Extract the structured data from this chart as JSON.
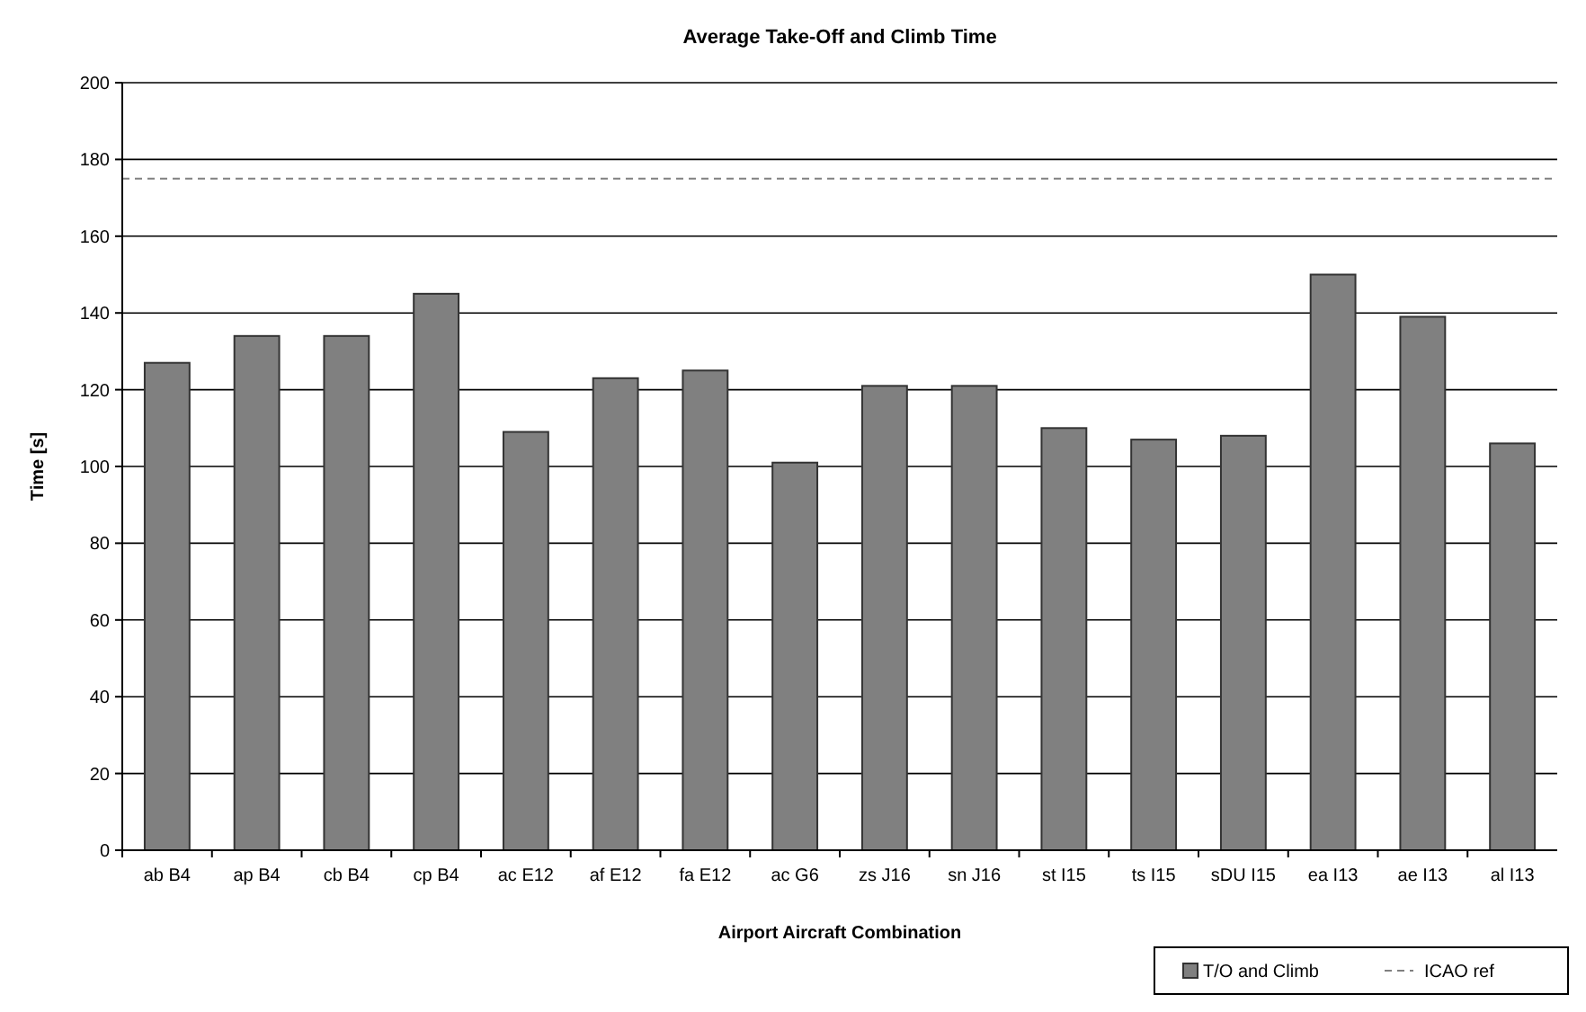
{
  "chart_data": {
    "type": "bar",
    "title": "Average Take-Off and Climb Time",
    "xlabel": "Airport Aircraft Combination",
    "ylabel": "Time [s]",
    "categories": [
      "ab B4",
      "ap B4",
      "cb B4",
      "cp B4",
      "ac E12",
      "af E12",
      "fa E12",
      "ac G6",
      "zs J16",
      "sn J16",
      "st I15",
      "ts I15",
      "sDU I15",
      "ea I13",
      "ae I13",
      "al I13"
    ],
    "series": [
      {
        "name": "T/O and Climb",
        "color": "#808080",
        "values": [
          127,
          134,
          134,
          145,
          109,
          123,
          125,
          101,
          121,
          121,
          110,
          107,
          108,
          150,
          139,
          106
        ]
      }
    ],
    "ylim": [
      0,
      200
    ],
    "yticks": [
      0,
      20,
      40,
      60,
      80,
      100,
      120,
      140,
      160,
      180,
      200
    ],
    "grid": "y",
    "legend": "bottom right",
    "ref_lines": [
      {
        "axis": "y",
        "value": 175,
        "label": "ICAO ref",
        "color": "#808080",
        "line_style": "dashed"
      }
    ]
  }
}
